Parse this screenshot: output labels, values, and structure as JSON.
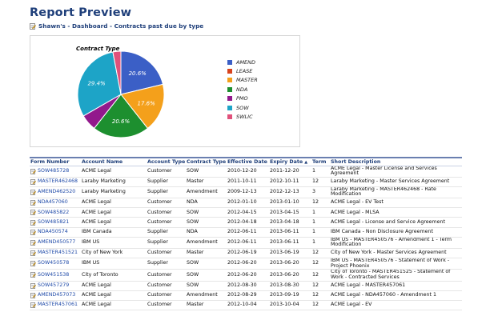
{
  "page": {
    "title": "Report Preview",
    "breadcrumb": "Shawn's - Dashboard - Contracts past due by type"
  },
  "colors": {
    "title": "#1f3f7a",
    "link": "#1f4aa8"
  },
  "chart_data": {
    "type": "pie",
    "title": "Contract Type",
    "legend_position": "right",
    "slices": [
      {
        "name": "AMEND",
        "value": 20.6,
        "label": "20.6%",
        "color": "#3b5fc6"
      },
      {
        "name": "LEASE",
        "value": 0.0,
        "label": "",
        "color": "#d8431d"
      },
      {
        "name": "MASTER",
        "value": 17.6,
        "label": "17.6%",
        "color": "#f4a01b"
      },
      {
        "name": "NDA",
        "value": 20.6,
        "label": "20.6%",
        "color": "#1d8f2f"
      },
      {
        "name": "PMO",
        "value": 5.9,
        "label": "",
        "color": "#92198c"
      },
      {
        "name": "SOW",
        "value": 29.4,
        "label": "29.4%",
        "color": "#1da4c7"
      },
      {
        "name": "SWLIC",
        "value": 2.9,
        "label": "",
        "color": "#e0517b"
      }
    ]
  },
  "table": {
    "columns": [
      "Form Number",
      "Account Name",
      "Account Type",
      "Contract Type",
      "Effective Date",
      "Expiry Date",
      "Term",
      "Short Description"
    ],
    "sort_indicator": "▲",
    "rows": [
      [
        "SOW485728",
        "ACME Legal",
        "Customer",
        "SOW",
        "2010-12-20",
        "2011-12-20",
        "1",
        "ACME Legal - Master License and Services Agreement"
      ],
      [
        "MASTER462468",
        "Laraby Marketing",
        "Supplier",
        "Master",
        "2011-10-11",
        "2012-10-11",
        "12",
        "Laraby Marketing - Master Services Agreement"
      ],
      [
        "AMEND462520",
        "Laraby Marketing",
        "Supplier",
        "Amendment",
        "2009-12-13",
        "2012-12-13",
        "3",
        "Laraby Marketing - MASTER462468 - Rate Modification"
      ],
      [
        "NDA457060",
        "ACME Legal",
        "Customer",
        "NDA",
        "2012-01-10",
        "2013-01-10",
        "12",
        "ACME Legal - EV Test"
      ],
      [
        "SOW485822",
        "ACME Legal",
        "Customer",
        "SOW",
        "2012-04-15",
        "2013-04-15",
        "1",
        "ACME Legal - MLSA"
      ],
      [
        "SOW485821",
        "ACME Legal",
        "Customer",
        "SOW",
        "2012-04-18",
        "2013-04-18",
        "1",
        "ACME Legal - License and Service Agreement"
      ],
      [
        "NDA450574",
        "IBM Canada",
        "Supplier",
        "NDA",
        "2012-06-11",
        "2013-06-11",
        "1",
        "IBM Canada - Non Disclosure Agreement"
      ],
      [
        "AMEND450577",
        "IBM US",
        "Supplier",
        "Amendment",
        "2012-06-11",
        "2013-06-11",
        "1",
        "IBM US - MASTER450576 - Amendment 1 - Term Modification"
      ],
      [
        "MASTER451521",
        "City of New York",
        "Customer",
        "Master",
        "2012-06-19",
        "2013-06-19",
        "12",
        "City of New York - Master Services Agreement"
      ],
      [
        "SOW450578",
        "IBM US",
        "Supplier",
        "SOW",
        "2012-06-20",
        "2013-06-20",
        "12",
        "IBM US - MASTER450576 - Statement of Work - Project Phoenix"
      ],
      [
        "SOW451538",
        "City of Toronto",
        "Customer",
        "SOW",
        "2012-06-20",
        "2013-06-20",
        "12",
        "City of Toronto - MASTER451525 - Statement of Work - Contracted Services"
      ],
      [
        "SOW457279",
        "ACME Legal",
        "Customer",
        "SOW",
        "2012-08-30",
        "2013-08-30",
        "12",
        "ACME Legal - MASTER457061"
      ],
      [
        "AMEND457073",
        "ACME Legal",
        "Customer",
        "Amendment",
        "2012-08-29",
        "2013-09-19",
        "12",
        "ACME Legal - NDA457060 - Amendment 1"
      ],
      [
        "MASTER457061",
        "ACME Legal",
        "Customer",
        "Master",
        "2012-10-04",
        "2013-10-04",
        "12",
        "ACME Legal - EV"
      ]
    ]
  }
}
